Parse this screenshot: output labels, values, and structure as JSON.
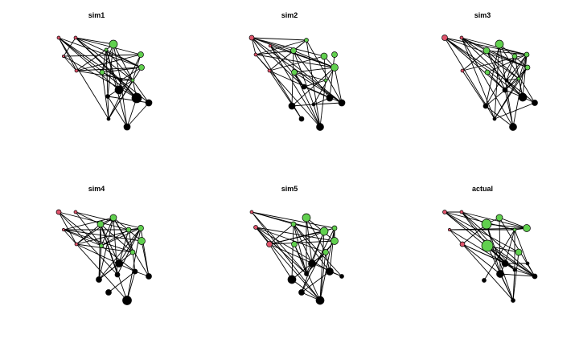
{
  "colors": {
    "group1": "#DF536B",
    "group2": "#61D04F",
    "group3": "#000000",
    "edge": "#000000"
  },
  "panels": [
    {
      "title": "sim1"
    },
    {
      "title": "sim2"
    },
    {
      "title": "sim3"
    },
    {
      "title": "sim4"
    },
    {
      "title": "sim5"
    },
    {
      "title": "actual"
    }
  ]
}
